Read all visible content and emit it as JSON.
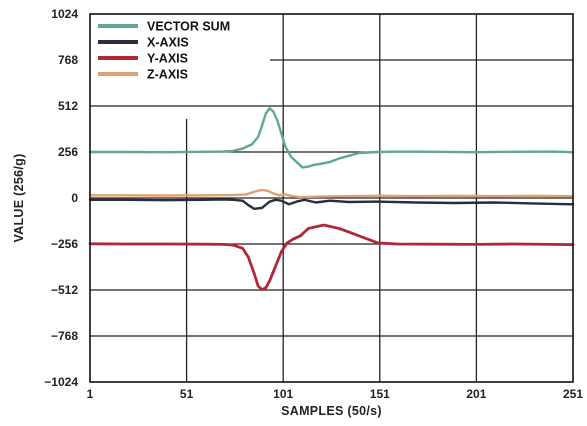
{
  "chart_data": {
    "type": "line",
    "title": "",
    "xlabel": "SAMPLES (50/s)",
    "ylabel": "VALUE (256/g)",
    "xlim": [
      1,
      251
    ],
    "ylim": [
      -1024,
      1024
    ],
    "x_ticks": [
      1,
      51,
      101,
      151,
      201,
      251
    ],
    "x_tick_labels": [
      "1",
      "51",
      "101",
      "151",
      "201",
      "251"
    ],
    "y_ticks": [
      1024,
      768,
      512,
      256,
      0,
      -256,
      -512,
      -768,
      -1024
    ],
    "y_tick_labels": [
      "1024",
      "768",
      "512",
      "256",
      "0",
      "−256",
      "−512",
      "−768",
      "−1024"
    ],
    "grid": true,
    "legend_position": "top-left",
    "series": [
      {
        "name": "VECTOR SUM",
        "color": "#5fa894",
        "x": [
          1,
          20,
          40,
          60,
          70,
          75,
          80,
          85,
          88,
          90,
          92,
          94,
          96,
          98,
          100,
          102,
          105,
          108,
          111,
          114,
          117,
          120,
          125,
          130,
          135,
          140,
          150,
          160,
          180,
          200,
          220,
          240,
          251
        ],
        "y": [
          256,
          256,
          255,
          257,
          258,
          262,
          275,
          300,
          340,
          400,
          470,
          500,
          480,
          430,
          360,
          290,
          230,
          200,
          170,
          175,
          185,
          190,
          200,
          220,
          235,
          250,
          256,
          258,
          257,
          255,
          257,
          258,
          255
        ]
      },
      {
        "name": "X-AXIS",
        "color": "#2a2d3e",
        "x": [
          1,
          20,
          40,
          60,
          70,
          75,
          80,
          83,
          86,
          90,
          94,
          97,
          100,
          104,
          108,
          112,
          118,
          125,
          135,
          150,
          170,
          190,
          210,
          230,
          251
        ],
        "y": [
          -10,
          -10,
          -12,
          -10,
          -8,
          -10,
          -15,
          -40,
          -60,
          -55,
          -20,
          -10,
          -15,
          -35,
          -20,
          -10,
          -25,
          -15,
          -22,
          -20,
          -25,
          -28,
          -25,
          -30,
          -35
        ]
      },
      {
        "name": "Y-AXIS",
        "color": "#b02838",
        "x": [
          1,
          20,
          40,
          60,
          70,
          75,
          80,
          83,
          86,
          88,
          90,
          92,
          94,
          97,
          100,
          103,
          106,
          110,
          114,
          118,
          122,
          126,
          130,
          135,
          140,
          150,
          160,
          180,
          200,
          220,
          240,
          251
        ],
        "y": [
          -255,
          -256,
          -256,
          -257,
          -258,
          -262,
          -280,
          -330,
          -420,
          -490,
          -510,
          -500,
          -460,
          -380,
          -300,
          -250,
          -230,
          -210,
          -170,
          -160,
          -150,
          -160,
          -170,
          -190,
          -210,
          -250,
          -256,
          -257,
          -258,
          -256,
          -258,
          -260
        ]
      },
      {
        "name": "Z-AXIS",
        "color": "#e0a172",
        "x": [
          1,
          20,
          40,
          60,
          75,
          82,
          86,
          90,
          93,
          96,
          99,
          102,
          106,
          110,
          120,
          135,
          150,
          170,
          190,
          210,
          230,
          251
        ],
        "y": [
          15,
          15,
          14,
          15,
          16,
          20,
          35,
          45,
          40,
          25,
          15,
          20,
          10,
          5,
          8,
          10,
          12,
          10,
          12,
          10,
          12,
          10
        ]
      }
    ]
  }
}
